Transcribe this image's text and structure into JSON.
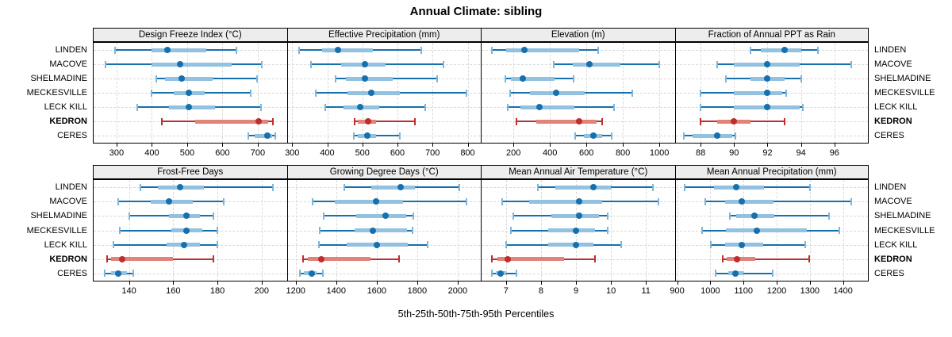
{
  "title": "Annual Climate: sibling",
  "caption": "5th-25th-50th-75th-95th Percentiles",
  "colors": {
    "series_normal": "#1670ad",
    "series_normal_band": "#92c2e0",
    "series_normal_cap": "#7eb6da",
    "series_highlight": "#bf2e2e",
    "series_highlight_band": "#e2837a",
    "series_highlight_cap": "#bf2e2e",
    "grid": "#d9d9d9",
    "strip_bg": "#ededed",
    "panel_border": "#000000"
  },
  "chart_data": {
    "type": "scatter",
    "subtype": "trellis-percentile-interval-dotplot",
    "percentiles": [
      "5th",
      "25th",
      "50th",
      "75th",
      "95th"
    ],
    "sites": [
      "LINDEN",
      "MACOVE",
      "SHELMADINE",
      "MECKESVILLE",
      "LECK KILL",
      "KEDRON",
      "CERES"
    ],
    "highlighted_site": "KEDRON",
    "layout": {
      "rows": 2,
      "cols": 4,
      "grid": "dashed",
      "site_labels": "both-sides",
      "legend": "none"
    },
    "panels": [
      {
        "title": "Design Freeze Index (°C)",
        "xlim": [
          235,
          780
        ],
        "ticks": [
          300,
          400,
          500,
          600,
          700
        ],
        "values": [
          [
            295,
            400,
            445,
            555,
            640
          ],
          [
            268,
            398,
            480,
            625,
            712
          ],
          [
            412,
            438,
            485,
            572,
            698
          ],
          [
            400,
            462,
            505,
            550,
            680
          ],
          [
            358,
            448,
            505,
            578,
            710
          ],
          [
            428,
            522,
            703,
            730,
            743
          ],
          [
            674,
            691,
            727,
            740,
            750
          ]
        ]
      },
      {
        "title": "Effective Precipitation (mm)",
        "xlim": [
          287,
          835
        ],
        "ticks": [
          300,
          400,
          500,
          600,
          700,
          800
        ],
        "values": [
          [
            320,
            385,
            430,
            530,
            668
          ],
          [
            354,
            440,
            508,
            566,
            730
          ],
          [
            423,
            452,
            508,
            586,
            712
          ],
          [
            367,
            458,
            525,
            607,
            797
          ],
          [
            395,
            447,
            494,
            548,
            679
          ],
          [
            478,
            487,
            517,
            540,
            650
          ],
          [
            476,
            487,
            515,
            538,
            606
          ]
        ]
      },
      {
        "title": "Elevation (m)",
        "xlim": [
          25,
          1080
        ],
        "ticks": [
          200,
          400,
          600,
          800,
          1000
        ],
        "values": [
          [
            80,
            158,
            262,
            560,
            665
          ],
          [
            420,
            527,
            618,
            785,
            1000
          ],
          [
            154,
            185,
            252,
            425,
            529
          ],
          [
            180,
            290,
            432,
            590,
            853
          ],
          [
            168,
            240,
            343,
            534,
            753
          ],
          [
            218,
            326,
            560,
            655,
            688
          ],
          [
            538,
            585,
            638,
            685,
            737
          ]
        ]
      },
      {
        "title": "Fraction of Annual PPT as Rain",
        "xlim": [
          86.5,
          98
        ],
        "ticks": [
          88,
          90,
          92,
          94,
          96
        ],
        "values": [
          [
            91,
            91.6,
            93,
            94,
            95
          ],
          [
            89,
            90,
            92,
            93.9,
            97
          ],
          [
            89.5,
            91,
            92,
            93,
            94
          ],
          [
            88,
            90,
            92,
            92.9,
            93.1
          ],
          [
            88,
            90,
            92,
            93.9,
            94.1
          ],
          [
            88,
            89,
            90,
            91,
            93
          ],
          [
            87,
            87.5,
            89,
            89.9,
            90.1
          ]
        ]
      },
      {
        "title": "Frost-Free Days",
        "xlim": [
          124,
          211
        ],
        "ticks": [
          140,
          160,
          180,
          200
        ],
        "values": [
          [
            145,
            153,
            163,
            174,
            205
          ],
          [
            135,
            150,
            158,
            169,
            183
          ],
          [
            140,
            158,
            166,
            172,
            178
          ],
          [
            136,
            159,
            166,
            173,
            180
          ],
          [
            133,
            157,
            165,
            172,
            180
          ],
          [
            130,
            132,
            137,
            160,
            178
          ],
          [
            129,
            132,
            135,
            139,
            142
          ]
        ]
      },
      {
        "title": "Growing Degree Days (°C)",
        "xlim": [
          1160,
          2110
        ],
        "ticks": [
          1200,
          1400,
          1600,
          1800,
          2000
        ],
        "values": [
          [
            1440,
            1575,
            1720,
            1790,
            2010
          ],
          [
            1285,
            1395,
            1595,
            1730,
            2045
          ],
          [
            1340,
            1500,
            1645,
            1745,
            1780
          ],
          [
            1320,
            1490,
            1580,
            1750,
            1778
          ],
          [
            1315,
            1450,
            1600,
            1755,
            1850
          ],
          [
            1235,
            1260,
            1325,
            1570,
            1712
          ],
          [
            1220,
            1240,
            1280,
            1305,
            1335
          ]
        ]
      },
      {
        "title": "Mean Annual Air Temperature (°C)",
        "xlim": [
          6.3,
          11.8
        ],
        "ticks": [
          7,
          8,
          9,
          10,
          11
        ],
        "values": [
          [
            7.9,
            8.4,
            9.5,
            10.0,
            11.2
          ],
          [
            6.9,
            7.65,
            9.1,
            9.75,
            11.35
          ],
          [
            7.2,
            8.3,
            9.1,
            9.65,
            9.9
          ],
          [
            7.15,
            8.2,
            9.0,
            9.55,
            9.9
          ],
          [
            7.0,
            8.2,
            9.0,
            9.5,
            10.3
          ],
          [
            6.6,
            6.75,
            7.05,
            8.65,
            9.55
          ],
          [
            6.6,
            6.7,
            6.85,
            7.0,
            7.3
          ]
        ]
      },
      {
        "title": "Mean Annual Precipitation (mm)",
        "xlim": [
          895,
          1475
        ],
        "ticks": [
          900,
          1000,
          1100,
          1200,
          1300,
          1400
        ],
        "values": [
          [
            922,
            1012,
            1078,
            1162,
            1300
          ],
          [
            984,
            1044,
            1095,
            1190,
            1425
          ],
          [
            1058,
            1077,
            1133,
            1193,
            1358
          ],
          [
            976,
            1048,
            1140,
            1290,
            1390
          ],
          [
            1002,
            1044,
            1095,
            1160,
            1285
          ],
          [
            1038,
            1050,
            1080,
            1135,
            1297
          ],
          [
            1016,
            1053,
            1075,
            1100,
            1187
          ]
        ]
      }
    ]
  }
}
